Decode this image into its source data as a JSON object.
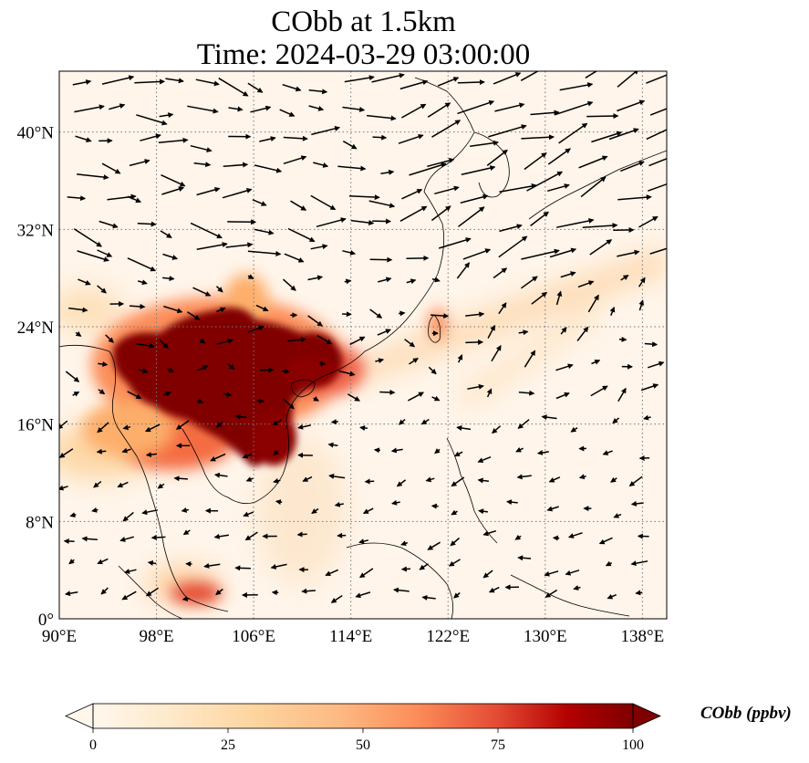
{
  "title": {
    "line1": "CObb at 1.5km",
    "line2": "Time: 2024-03-29 03:00:00"
  },
  "axes": {
    "lon_range": [
      90,
      140
    ],
    "lat_range": [
      0,
      45
    ],
    "lon_ticks": [
      "90°E",
      "98°E",
      "106°E",
      "114°E",
      "122°E",
      "130°E",
      "138°E"
    ],
    "lon_tick_values": [
      90,
      98,
      106,
      114,
      122,
      130,
      138
    ],
    "lat_ticks": [
      "0°",
      "8°N",
      "16°N",
      "24°N",
      "32°N",
      "40°N"
    ],
    "lat_tick_values": [
      0,
      8,
      16,
      24,
      32,
      40
    ],
    "grid": "dotted"
  },
  "colorbar": {
    "label": "CObb (ppbv)",
    "ticks": [
      "0",
      "25",
      "50",
      "75",
      "100"
    ],
    "min": 0,
    "max": 100,
    "colormap": "OrRd",
    "extend": "both"
  },
  "colors": {
    "low": "#fff7ec",
    "mid": "#fdbb84",
    "high": "#d7301f",
    "max": "#7f0000",
    "coast": "#000000"
  }
}
